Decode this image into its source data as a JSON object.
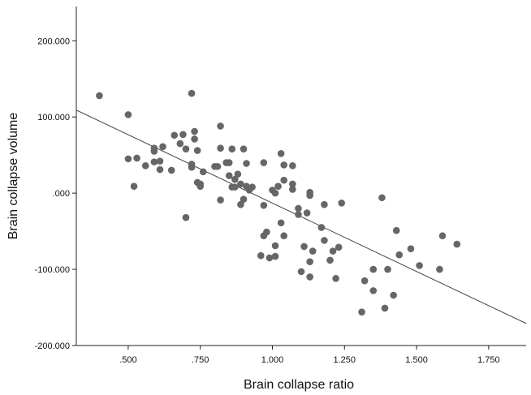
{
  "chart_data": {
    "type": "scatter",
    "title": "",
    "xlabel": "Brain collapse ratio",
    "ylabel": "Brain collapse volume",
    "xlim": [
      0.32,
      1.88
    ],
    "ylim": [
      -200,
      245
    ],
    "x_ticks": [
      {
        "value": 0.5,
        "label": ".500"
      },
      {
        "value": 0.75,
        "label": ".750"
      },
      {
        "value": 1.0,
        "label": "1.000"
      },
      {
        "value": 1.25,
        "label": "1.250"
      },
      {
        "value": 1.5,
        "label": "1.500"
      },
      {
        "value": 1.75,
        "label": "1.750"
      }
    ],
    "y_ticks": [
      {
        "value": 200,
        "label": "200.000"
      },
      {
        "value": 100,
        "label": "100.000"
      },
      {
        "value": 0,
        "label": ".000"
      },
      {
        "value": -100,
        "label": "-100.000"
      },
      {
        "value": -200,
        "label": "-200.000"
      }
    ],
    "grid": false,
    "point_color": "#666666",
    "line_color": "#444444",
    "fit_line": {
      "x": [
        0.32,
        1.88
      ],
      "y": [
        109,
        -171
      ]
    },
    "points": [
      [
        0.4,
        128
      ],
      [
        0.5,
        103
      ],
      [
        0.72,
        131
      ],
      [
        0.5,
        45
      ],
      [
        0.53,
        46
      ],
      [
        0.56,
        36
      ],
      [
        0.59,
        41
      ],
      [
        0.59,
        55
      ],
      [
        0.59,
        59
      ],
      [
        0.61,
        42
      ],
      [
        0.61,
        31
      ],
      [
        0.62,
        61
      ],
      [
        0.52,
        9
      ],
      [
        0.65,
        30
      ],
      [
        0.66,
        76
      ],
      [
        0.68,
        65
      ],
      [
        0.69,
        77
      ],
      [
        0.7,
        58
      ],
      [
        0.72,
        34
      ],
      [
        0.72,
        38
      ],
      [
        0.73,
        81
      ],
      [
        0.73,
        71
      ],
      [
        0.74,
        56
      ],
      [
        0.74,
        14
      ],
      [
        0.75,
        9
      ],
      [
        0.75,
        12
      ],
      [
        0.76,
        28
      ],
      [
        0.7,
        -32
      ],
      [
        0.8,
        35
      ],
      [
        0.81,
        35
      ],
      [
        0.82,
        88
      ],
      [
        0.82,
        59
      ],
      [
        0.82,
        -9
      ],
      [
        0.84,
        40
      ],
      [
        0.85,
        40
      ],
      [
        0.85,
        23
      ],
      [
        0.86,
        58
      ],
      [
        0.86,
        8
      ],
      [
        0.87,
        18
      ],
      [
        0.87,
        8
      ],
      [
        0.88,
        25
      ],
      [
        0.89,
        12
      ],
      [
        0.89,
        -15
      ],
      [
        0.9,
        58
      ],
      [
        0.9,
        -8
      ],
      [
        0.91,
        39
      ],
      [
        0.91,
        9
      ],
      [
        0.92,
        4
      ],
      [
        0.93,
        8
      ],
      [
        0.96,
        -82
      ],
      [
        0.97,
        40
      ],
      [
        0.97,
        -56
      ],
      [
        0.97,
        -16
      ],
      [
        0.98,
        -51
      ],
      [
        0.99,
        -85
      ],
      [
        1.0,
        4
      ],
      [
        1.01,
        0
      ],
      [
        1.01,
        -69
      ],
      [
        1.01,
        -83
      ],
      [
        1.02,
        9
      ],
      [
        1.03,
        52
      ],
      [
        1.03,
        -39
      ],
      [
        1.04,
        37
      ],
      [
        1.04,
        17
      ],
      [
        1.04,
        -56
      ],
      [
        1.07,
        36
      ],
      [
        1.07,
        12
      ],
      [
        1.07,
        5
      ],
      [
        1.09,
        -20
      ],
      [
        1.09,
        -28
      ],
      [
        1.1,
        -103
      ],
      [
        1.11,
        -70
      ],
      [
        1.12,
        -26
      ],
      [
        1.13,
        1
      ],
      [
        1.13,
        -3
      ],
      [
        1.13,
        -90
      ],
      [
        1.13,
        -110
      ],
      [
        1.14,
        -76
      ],
      [
        1.17,
        -45
      ],
      [
        1.18,
        -15
      ],
      [
        1.18,
        -62
      ],
      [
        1.2,
        -88
      ],
      [
        1.21,
        -76
      ],
      [
        1.22,
        -112
      ],
      [
        1.23,
        -71
      ],
      [
        1.24,
        -13
      ],
      [
        1.31,
        -156
      ],
      [
        1.32,
        -115
      ],
      [
        1.35,
        -100
      ],
      [
        1.35,
        -128
      ],
      [
        1.38,
        -6
      ],
      [
        1.39,
        -151
      ],
      [
        1.4,
        -100
      ],
      [
        1.42,
        -134
      ],
      [
        1.43,
        -49
      ],
      [
        1.44,
        -81
      ],
      [
        1.48,
        -73
      ],
      [
        1.51,
        -95
      ],
      [
        1.58,
        -100
      ],
      [
        1.59,
        -56
      ],
      [
        1.64,
        -67
      ]
    ]
  }
}
